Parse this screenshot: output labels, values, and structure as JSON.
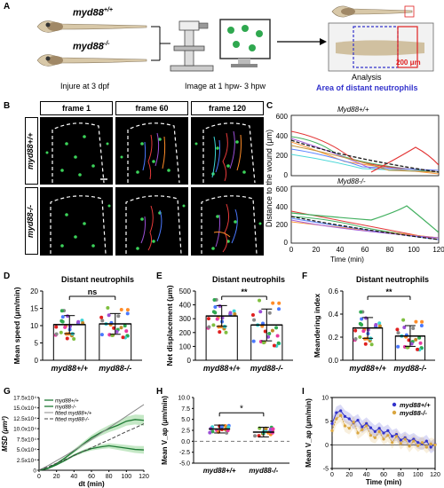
{
  "panels": {
    "A": "A",
    "B": "B",
    "C": "C",
    "D": "D",
    "E": "E",
    "F": "F",
    "G": "G",
    "H": "H",
    "I": "I"
  },
  "panel_a": {
    "wt_label": "myd88",
    "wt_sup": "+/+",
    "ko_label": "myd88",
    "ko_sup": "-/-",
    "step1": "Injure at 3 dpf",
    "step2": "Image at 1 hpw- 3 hpw",
    "step3": "Analysis",
    "scale": "200 μm",
    "area": "Area of distant neutrophils"
  },
  "panel_b": {
    "frames": [
      "frame 1",
      "frame 60",
      "frame 120"
    ],
    "rows": [
      "myd88+/+",
      "myd88-/-"
    ]
  },
  "panel_c": {
    "top_title": "Myd88+/+",
    "bottom_title": "Myd88-/-",
    "ylabel": "Distance to the wound (μm)",
    "xlabel": "Time (min)",
    "top_yticks": [
      "600",
      "400",
      "200",
      "0"
    ],
    "bottom_yticks": [
      "600",
      "400",
      "200",
      "0"
    ],
    "xticks": [
      "0",
      "20",
      "40",
      "60",
      "80",
      "100",
      "120"
    ]
  },
  "panel_d": {
    "title": "Distant neutrophils",
    "ylabel": "Mean speed (μm/min)",
    "sig": "ns",
    "yticks": [
      "20",
      "15",
      "10",
      "5",
      "0"
    ],
    "cats": [
      "myd88+/+",
      "myd88-/-"
    ]
  },
  "panel_e": {
    "title": "Distant neutrophils",
    "ylabel": "Net displacement (μm)",
    "sig": "**",
    "yticks": [
      "500",
      "400",
      "300",
      "200",
      "100",
      "0"
    ],
    "cats": [
      "myd88+/+",
      "myd88-/-"
    ]
  },
  "panel_f": {
    "title": "Distant neutrophils",
    "ylabel": "Meandering index",
    "sig": "**",
    "yticks": [
      "0.6",
      "0.4",
      "0.2",
      "0.0"
    ],
    "cats": [
      "myd88+/+",
      "myd88-/-"
    ]
  },
  "panel_g": {
    "ylabel": "MSD (μm²)",
    "xlabel": "dt (min)",
    "legend": [
      "myd88+/+",
      "myd88-/-",
      "fitted myd88+/+",
      "fitted myd88-/-"
    ],
    "yticks": [
      "17.5x10⁴",
      "15.0x10⁴",
      "12.5x10⁴",
      "10.0x10⁴",
      "7.5x10⁴",
      "5.0x10⁴",
      "2.5x10⁴",
      "0"
    ],
    "xticks": [
      "0",
      "20",
      "40",
      "60",
      "80",
      "100",
      "120"
    ]
  },
  "panel_h": {
    "ylabel": "Mean V_ap (μm/min)",
    "sig": "*",
    "yticks": [
      "10.0",
      "7.5",
      "5.0",
      "2.5",
      "0.0",
      "-2.5",
      "-5.0"
    ],
    "cats": [
      "myd88+/+",
      "myd88-/-"
    ]
  },
  "panel_i": {
    "ylabel": "Mean V_ap (μm/min)",
    "xlabel": "Time (min)",
    "legend": [
      "myd88+/+",
      "myd88-/-"
    ],
    "yticks": [
      "10",
      "5",
      "0",
      "-5"
    ],
    "xticks": [
      "0",
      "20",
      "40",
      "60",
      "80",
      "100",
      "120"
    ]
  },
  "colors": {
    "wt": "#3333cc",
    "ko": "#d9a640",
    "accent": "#e02020",
    "green": "#2fa84f"
  },
  "chart_data": [
    {
      "type": "bar",
      "panel": "D",
      "categories": [
        "myd88+/+",
        "myd88-/-"
      ],
      "values": [
        10.3,
        10.5
      ],
      "errors": [
        2.6,
        3.0
      ],
      "ylim": [
        0,
        20
      ]
    },
    {
      "type": "bar",
      "panel": "E",
      "categories": [
        "myd88+/+",
        "myd88-/-"
      ],
      "values": [
        320,
        255
      ],
      "errors": [
        75,
        115
      ],
      "ylim": [
        0,
        500
      ]
    },
    {
      "type": "bar",
      "panel": "F",
      "categories": [
        "myd88+/+",
        "myd88-/-"
      ],
      "values": [
        0.28,
        0.21
      ],
      "errors": [
        0.09,
        0.09
      ],
      "ylim": [
        0,
        0.6
      ]
    },
    {
      "type": "line",
      "panel": "G",
      "x": [
        0,
        10,
        20,
        30,
        40,
        50,
        60,
        70,
        80,
        90,
        100,
        110,
        120
      ],
      "series": [
        {
          "name": "myd88+/+",
          "values": [
            0,
            0.5,
            1.6,
            3.0,
            4.6,
            6.2,
            7.8,
            9.0,
            10.0,
            10.8,
            11.8,
            12.2,
            12.0
          ]
        },
        {
          "name": "myd88-/-",
          "values": [
            0,
            0.4,
            1.3,
            2.4,
            3.6,
            4.5,
            5.2,
            5.6,
            5.9,
            5.6,
            5.3,
            5.0,
            4.9
          ]
        },
        {
          "name": "fitted myd88+/+",
          "values": [
            0,
            1.1,
            2.3,
            3.5,
            4.8,
            6.1,
            7.4,
            8.8,
            10.2,
            11.6,
            13.0,
            14.4,
            15.8
          ]
        },
        {
          "name": "fitted myd88-/-",
          "values": [
            0,
            0.8,
            1.7,
            2.6,
            3.5,
            4.5,
            5.4,
            6.4,
            7.3,
            8.3,
            9.3,
            10.2,
            11.2
          ]
        }
      ],
      "ylim": [
        0,
        17.5
      ]
    },
    {
      "type": "scatter",
      "panel": "H",
      "categories": [
        "myd88+/+",
        "myd88-/-"
      ],
      "values": [
        2.8,
        2.1
      ],
      "errors": [
        0.9,
        1.1
      ],
      "ylim": [
        -5,
        10
      ]
    },
    {
      "type": "line",
      "panel": "I",
      "x": [
        0,
        5,
        10,
        15,
        20,
        25,
        30,
        35,
        40,
        45,
        50,
        55,
        60,
        65,
        70,
        75,
        80,
        85,
        90,
        95,
        100,
        105,
        110,
        115,
        120
      ],
      "series": [
        {
          "name": "myd88+/+",
          "values": [
            4.5,
            6.8,
            7.2,
            6.0,
            5.5,
            4.6,
            5.2,
            3.8,
            4.5,
            3.6,
            2.8,
            3.5,
            2.5,
            3.0,
            1.8,
            2.2,
            1.0,
            1.5,
            0.8,
            1.2,
            0.5,
            0.2,
            0.8,
            -0.5,
            0.1
          ]
        },
        {
          "name": "myd88-/-",
          "values": [
            3.0,
            5.5,
            6.2,
            4.0,
            3.5,
            4.8,
            2.5,
            3.2,
            4.0,
            2.0,
            1.5,
            2.8,
            1.2,
            2.0,
            0.5,
            1.8,
            0.3,
            1.2,
            -0.3,
            0.8,
            -0.2,
            0.5,
            -0.5,
            0.2,
            0.0
          ]
        }
      ],
      "ylim": [
        -5,
        10
      ]
    }
  ]
}
